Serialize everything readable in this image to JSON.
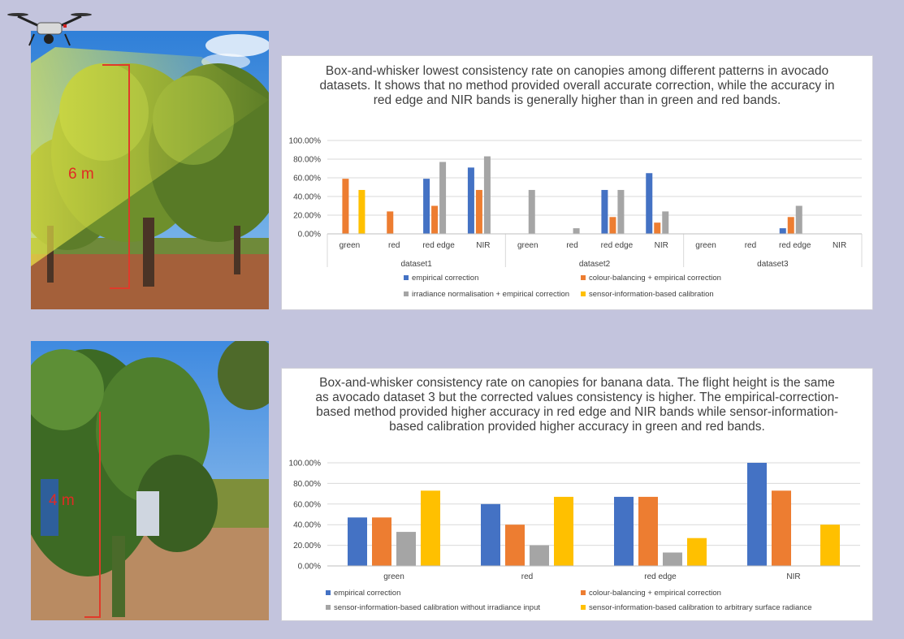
{
  "photos": {
    "avocado": {
      "height_label": "6 m"
    },
    "banana": {
      "height_label": "4 m"
    }
  },
  "chart_data": [
    {
      "type": "bar",
      "title": "Box-and-whisker lowest consistency rate on canopies among different patterns in avocado datasets. It shows that no method provided overall accurate correction, while the accuracy in red edge and NIR bands is generally higher than in green and red bands.",
      "groups": [
        "dataset1",
        "dataset2",
        "dataset3"
      ],
      "categories": [
        "green",
        "red",
        "red edge",
        "NIR"
      ],
      "y_ticks": [
        "100.00%",
        "80.00%",
        "60.00%",
        "40.00%",
        "20.00%",
        "0.00%"
      ],
      "ylim": [
        0,
        100
      ],
      "grid": true,
      "legend_position": "bottom",
      "series": [
        {
          "name": "empirical correction",
          "color": "#4472c4",
          "values": [
            [
              0,
              0,
              59,
              71
            ],
            [
              0,
              0,
              47,
              65
            ],
            [
              0,
              0,
              6,
              0
            ]
          ]
        },
        {
          "name": "colour-balancing + empirical correction",
          "color": "#ed7d31",
          "values": [
            [
              59,
              24,
              30,
              47
            ],
            [
              0,
              0,
              18,
              12
            ],
            [
              0,
              0,
              18,
              0
            ]
          ]
        },
        {
          "name": "irradiance normalisation + empirical correction",
          "color": "#a5a5a5",
          "values": [
            [
              0,
              0,
              77,
              83
            ],
            [
              47,
              6,
              47,
              24
            ],
            [
              0,
              0,
              30,
              0
            ]
          ]
        },
        {
          "name": "sensor-information-based calibration",
          "color": "#ffc000",
          "values": [
            [
              47,
              0,
              0,
              0
            ],
            [
              0,
              0,
              0,
              0
            ],
            [
              0,
              0,
              0,
              0
            ]
          ]
        }
      ]
    },
    {
      "type": "bar",
      "title": "Box-and-whisker consistency rate on canopies for banana data. The flight height is the same as avocado dataset 3 but the corrected values consistency is higher. The empirical-correction-based method provided higher accuracy in red edge and NIR bands while sensor-information-based calibration provided higher accuracy in green and red bands.",
      "categories": [
        "green",
        "red",
        "red edge",
        "NIR"
      ],
      "y_ticks": [
        "100.00%",
        "80.00%",
        "60.00%",
        "40.00%",
        "20.00%",
        "0.00%"
      ],
      "ylim": [
        0,
        100
      ],
      "grid": true,
      "legend_position": "bottom",
      "series": [
        {
          "name": "empirical correction",
          "color": "#4472c4",
          "values": [
            47,
            60,
            67,
            100
          ]
        },
        {
          "name": "colour-balancing + empirical correction",
          "color": "#ed7d31",
          "values": [
            47,
            40,
            67,
            73
          ]
        },
        {
          "name": "sensor-information-based calibration without irradiance input",
          "color": "#a5a5a5",
          "values": [
            33,
            20,
            13,
            0
          ]
        },
        {
          "name": "sensor-information-based calibration to arbitrary surface radiance",
          "color": "#ffc000",
          "values": [
            73,
            67,
            27,
            40
          ]
        }
      ]
    }
  ]
}
